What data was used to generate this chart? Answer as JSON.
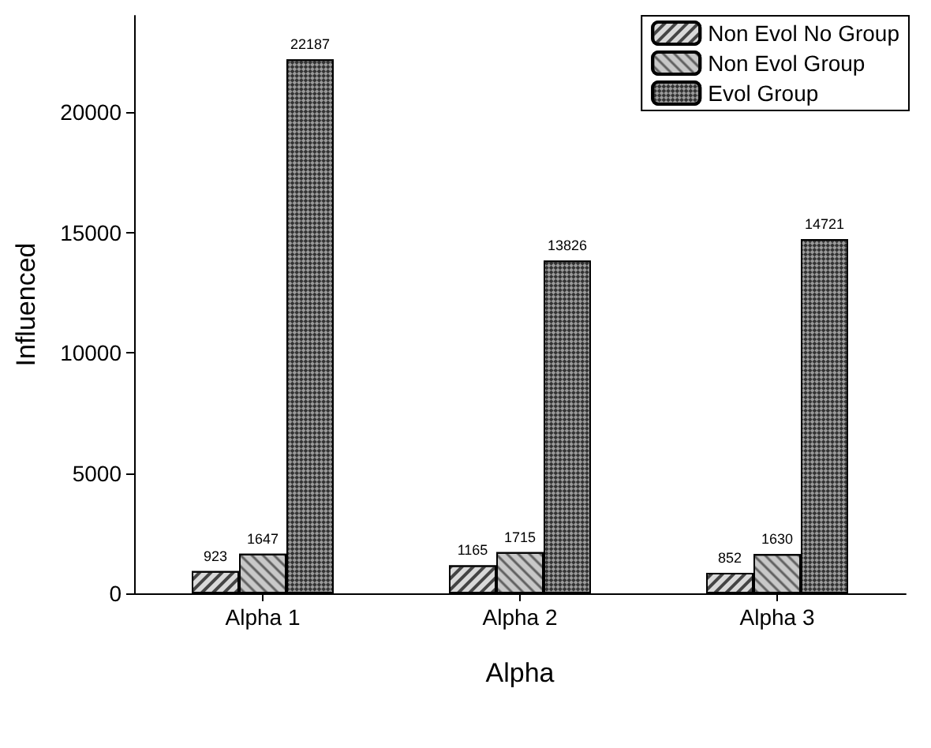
{
  "chart_data": {
    "type": "bar",
    "xlabel": "Alpha",
    "ylabel": "Influenced",
    "categories": [
      "Alpha 1",
      "Alpha 2",
      "Alpha 3"
    ],
    "series": [
      {
        "name": "Non Evol No Group",
        "color": "#d9d9d9",
        "values": [
          923,
          1165,
          852
        ]
      },
      {
        "name": "Non Evol Group",
        "color": "#c8c8c8",
        "values": [
          1647,
          1715,
          1630
        ]
      },
      {
        "name": "Evol Group",
        "color": "#9a9a9a",
        "values": [
          22187,
          13826,
          14721
        ]
      }
    ],
    "ylim": [
      0,
      24000
    ],
    "yticks": [
      0,
      5000,
      10000,
      15000,
      20000
    ],
    "data_labels": true,
    "legend": "top right",
    "grid": false
  }
}
